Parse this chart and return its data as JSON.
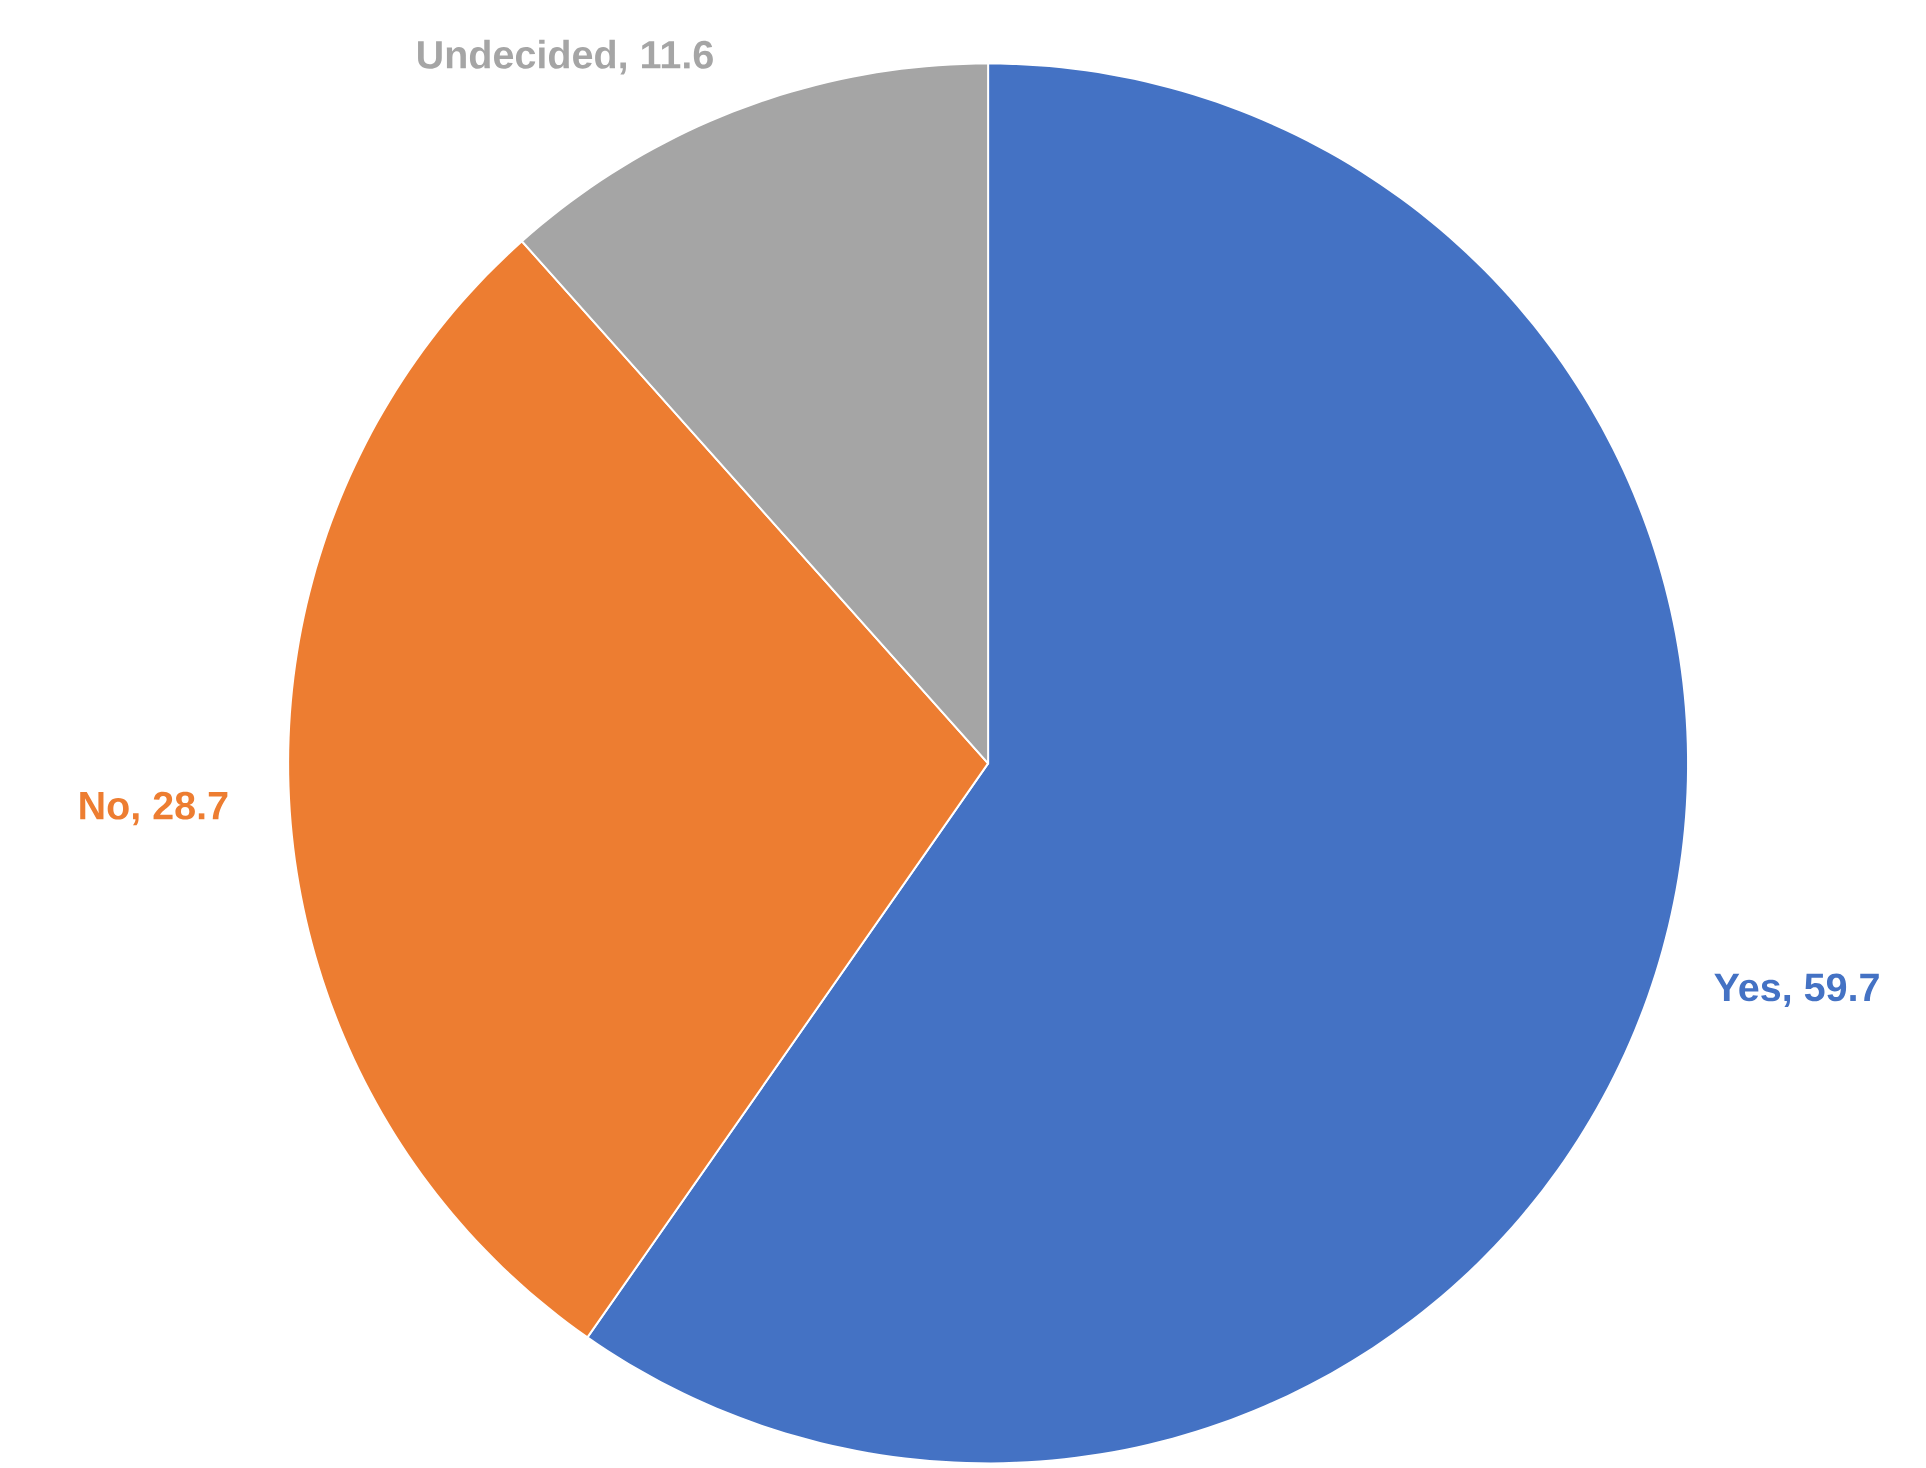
{
  "chart_data": {
    "type": "pie",
    "categories": [
      "Yes",
      "No",
      "Undecided"
    ],
    "values": [
      59.7,
      28.7,
      11.6
    ],
    "colors": [
      "#4472c4",
      "#ed7d31",
      "#a5a5a5"
    ],
    "value_labels": [
      ", 59.7",
      ", 28.7",
      ", 11.6"
    ]
  }
}
